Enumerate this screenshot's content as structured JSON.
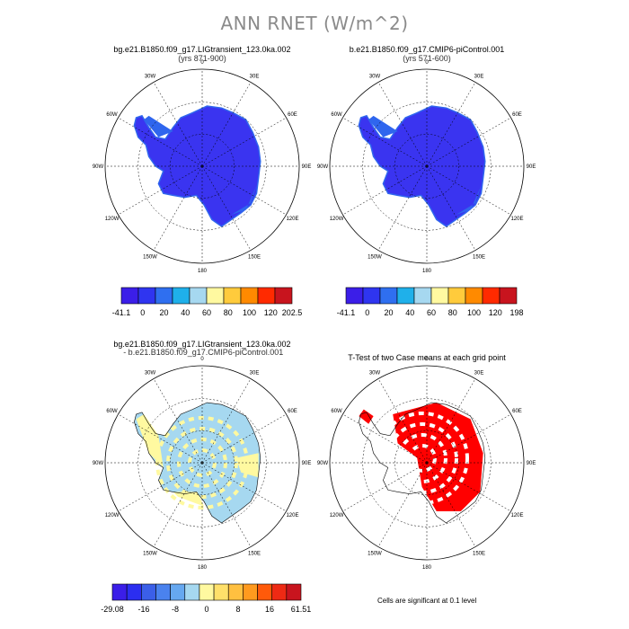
{
  "title": "ANN RNET (W/m^2)",
  "panels": [
    {
      "title": "bg.e21.B1850.f09_g17.LIGtransient_123.0ka.002",
      "subtitle": "(yrs 871-900)"
    },
    {
      "title": "b.e21.B1850.f09_g17.CMIP6-piControl.001",
      "subtitle": "(yrs 571-600)"
    },
    {
      "title": "bg.e21.B1850.f09_g17.LIGtransient_123.0ka.002",
      "subtitle": " - b.e21.B1850.f09_g17.CMIP6-piControl.001"
    },
    {
      "title": "T-Test of two Case means at each grid point",
      "subtitle": ""
    }
  ],
  "map_labels": [
    "0",
    "30E",
    "60E",
    "90E",
    "120E",
    "150E",
    "180",
    "150W",
    "120W",
    "90W",
    "60W",
    "30W"
  ],
  "colorbars": [
    {
      "colors": [
        "#3b1ee8",
        "#2f35f0",
        "#2f6ff0",
        "#1fb0ea",
        "#a6d8f0",
        "#fff9a0",
        "#ffcb3c",
        "#ff8a00",
        "#ff2a00",
        "#c8141e"
      ],
      "labels": [
        "-41.1",
        "0",
        "20",
        "40",
        "60",
        "80",
        "100",
        "120",
        "202.5"
      ]
    },
    {
      "colors": [
        "#3b1ee8",
        "#2f35f0",
        "#2f6ff0",
        "#1fb0ea",
        "#a6d8f0",
        "#fff9a0",
        "#ffcb3c",
        "#ff8a00",
        "#ff2a00",
        "#c8141e"
      ],
      "labels": [
        "-41.1",
        "0",
        "20",
        "40",
        "60",
        "80",
        "100",
        "120",
        "198"
      ]
    },
    {
      "colors": [
        "#3b1ee8",
        "#2b2ef0",
        "#3b5fe8",
        "#4a82ee",
        "#66a8f0",
        "#a6d8f0",
        "#fff9a0",
        "#ffe06a",
        "#ffc040",
        "#ff9a1e",
        "#ff5a0a",
        "#ee2a14",
        "#c8141e"
      ],
      "labels": [
        "-29.08",
        "-16",
        "-8",
        "0",
        "8",
        "16",
        "61.51"
      ]
    }
  ],
  "significance_note": "Cells are significant at 0.1 level",
  "colors": {
    "antarctic_low": "#3a34f0",
    "antarctic_mid": "#2f66ee",
    "diff_pos": "#fff9a0",
    "diff_neg": "#a6d8f0",
    "signif": "#ff0000",
    "title_gray": "#8a8a8a"
  }
}
